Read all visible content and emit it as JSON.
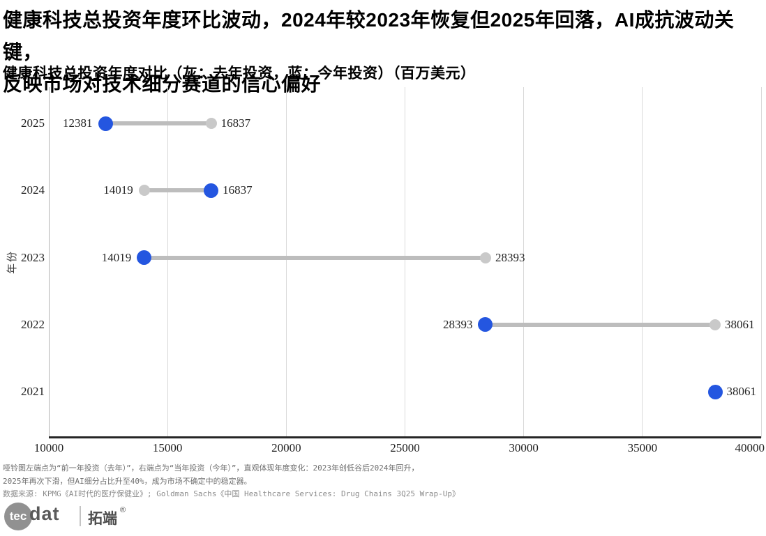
{
  "header": {
    "title_line1": "健康科技总投资年度环比波动，2024年较2023年恢复但2025年回落，AI成抗波动关键，",
    "title_line2": "反映市场对技术细分赛道的信心偏好",
    "subtitle": "健康科技总投资年度对比（灰：去年投资，蓝：今年投资）（百万美元）"
  },
  "chart_data": {
    "type": "dumbbell",
    "orientation": "horizontal",
    "title": "健康科技总投资年度对比（灰：去年投资，蓝：今年投资）（百万美元）",
    "ylabel": "年份",
    "xlabel": "",
    "unit": "百万美元",
    "categories": [
      "2025",
      "2024",
      "2023",
      "2022",
      "2021"
    ],
    "series": [
      {
        "name": "去年投资",
        "role": "last_year",
        "color": "#c9c9c9",
        "dot_diameter": 16,
        "values": [
          16837,
          14019,
          28393,
          38061,
          null
        ]
      },
      {
        "name": "今年投资",
        "role": "this_year",
        "color": "#2456e0",
        "dot_diameter": 21,
        "values": [
          12381,
          16837,
          14019,
          28393,
          38061
        ]
      }
    ],
    "xlim": [
      10000,
      40000
    ],
    "x_ticks": [
      10000,
      15000,
      20000,
      25000,
      30000,
      35000,
      40000
    ],
    "grid": "vertical",
    "connector_color": "#bdbdbd"
  },
  "footer": {
    "note_line1": "哑铃图左端点为“前一年投资（去年）”，右端点为“当年投资（今年）”，直观体现年度变化：2023年创低谷后2024年回升，",
    "note_line2": "2025年再次下滑，但AI细分占比升至40%，成为市场不确定中的稳定器。",
    "source_line": "数据来源: KPMG《AI时代的医疗保健业》; Goldman Sachs《中国 Healthcare Services: Drug Chains 3Q25 Wrap-Up》"
  },
  "logo": {
    "brand_prefix": "tec",
    "brand_suffix": "dat",
    "brand_cn": "拓端",
    "registered_mark": "®"
  }
}
